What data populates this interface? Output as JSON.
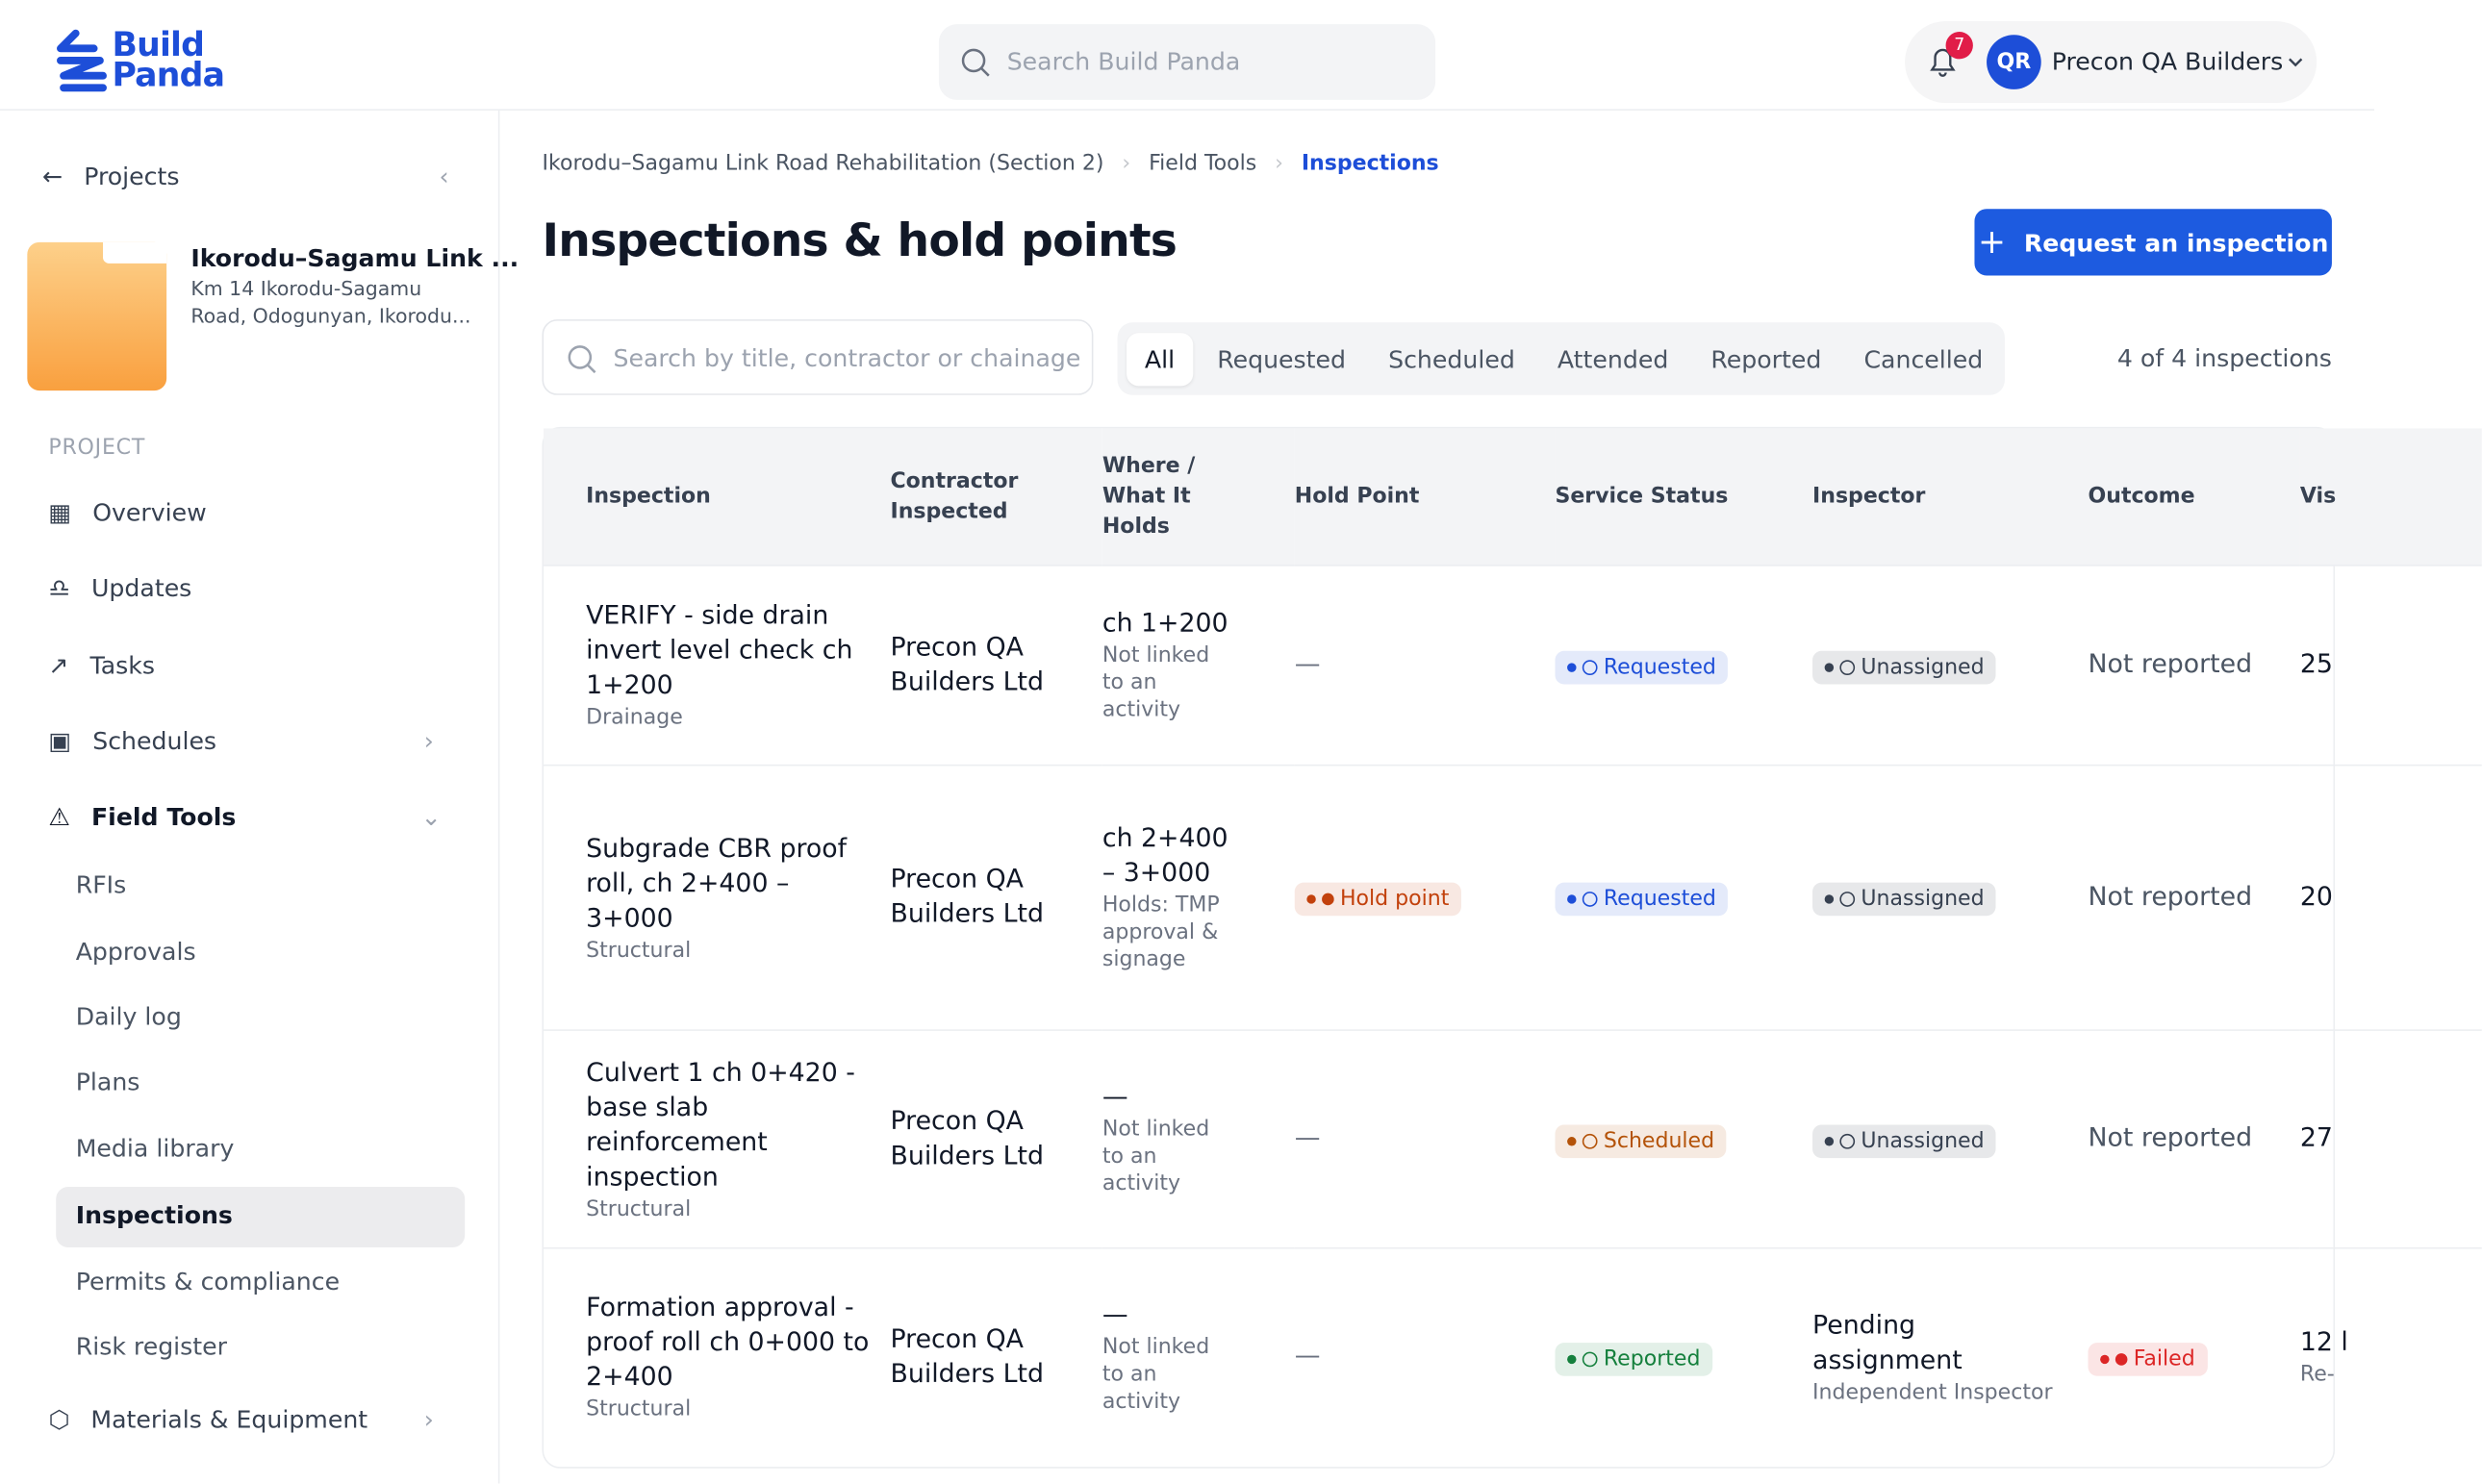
{
  "header": {
    "logo": [
      "Build",
      "Panda"
    ],
    "search_placeholder": "Search Build Panda",
    "notification_count": 7,
    "user_initials": "QR",
    "user_name": "Precon QA Builders"
  },
  "sidebar": {
    "back": "Projects",
    "project_name": "Ikorodu–Sagamu Link ...",
    "project_address": "Km 14 Ikorodu-Sagamu Road, Odogunyan, Ikorodu...",
    "section": "PROJECT",
    "nav": [
      "Overview",
      "Updates",
      "Tasks",
      "Schedules",
      "Field Tools"
    ],
    "field_tools": [
      "RFIs",
      "Approvals",
      "Daily log",
      "Plans",
      "Media library",
      "Inspections",
      "Permits & compliance",
      "Risk register"
    ],
    "materials": "Materials & Equipment"
  },
  "breadcrumb": [
    "Ikorodu–Sagamu Link Road Rehabilitation (Section 2)",
    "Field Tools",
    "Inspections"
  ],
  "title": "Inspections & hold points",
  "action": "Request an inspection",
  "search_placeholder": "Search by title, contractor or chainage",
  "tabs": [
    "All",
    "Requested",
    "Scheduled",
    "Attended",
    "Reported",
    "Cancelled"
  ],
  "count": "4 of 4 inspections",
  "table": {
    "columns": [
      "Inspection",
      "Contractor Inspected",
      "Where / What It Holds",
      "Hold Point",
      "Service Status",
      "Inspector",
      "Outcome",
      "Vis"
    ],
    "rows": [
      {
        "title": "VERIFY - side drain invert level check ch 1+200",
        "category": "Drainage",
        "contractor": "Precon QA Builders Ltd",
        "where": "ch 1+200",
        "where_note": "Not linked to an activity",
        "hold_point": "—",
        "status": {
          "label": "Requested",
          "color": "#1d4ed8"
        },
        "inspector": {
          "label": "Unassigned",
          "color": "#374151"
        },
        "outcome": "Not reported",
        "vis": "25"
      },
      {
        "title": "Subgrade CBR proof roll, ch 2+400 – 3+000",
        "category": "Structural",
        "contractor": "Precon QA Builders Ltd",
        "where": "ch 2+400 – 3+000",
        "where_note": "Holds: TMP approval & signage",
        "hold_point": {
          "label": "Hold point",
          "color": "#c2410c"
        },
        "status": {
          "label": "Requested",
          "color": "#1d4ed8"
        },
        "inspector": {
          "label": "Unassigned",
          "color": "#374151"
        },
        "outcome": "Not reported",
        "vis": "20"
      },
      {
        "title": "Culvert 1 ch 0+420 - base slab reinforcement inspection",
        "category": "Structural",
        "contractor": "Precon QA Builders Ltd",
        "where": "—",
        "where_note": "Not linked to an activity",
        "hold_point": "—",
        "status": {
          "label": "Scheduled",
          "color": "#b45309"
        },
        "inspector": {
          "label": "Unassigned",
          "color": "#374151"
        },
        "outcome": "Not reported",
        "vis": "27"
      },
      {
        "title": "Formation approval - proof roll ch 0+000 to 2+400",
        "category": "Structural",
        "contractor": "Precon QA Builders Ltd",
        "where": "—",
        "where_note": "Not linked to an activity",
        "hold_point": "—",
        "status": {
          "label": "Reported",
          "color": "#15803d"
        },
        "inspector": {
          "name": "Pending assignment",
          "note": "Independent Inspector"
        },
        "outcome": {
          "label": "Failed",
          "color": "#dc2626"
        },
        "vis": "12 l",
        "vis_note": "Re-"
      }
    ]
  }
}
